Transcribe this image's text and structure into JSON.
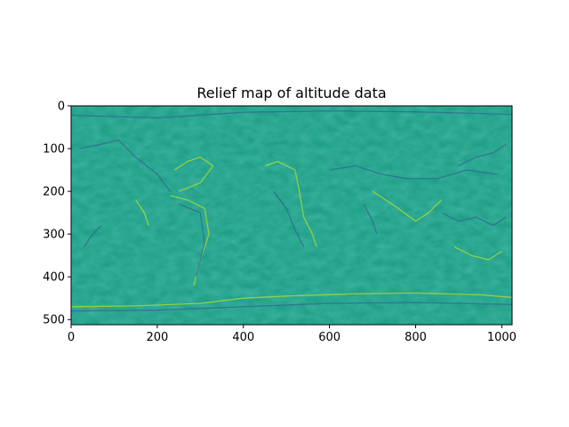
{
  "chart_data": {
    "type": "heatmap",
    "title": "Relief map of altitude data",
    "xlabel": "",
    "ylabel": "",
    "xlim": [
      0,
      1024
    ],
    "ylim": [
      512,
      0
    ],
    "x_ticks": [
      0,
      200,
      400,
      600,
      800,
      1000
    ],
    "y_ticks": [
      0,
      100,
      200,
      300,
      400,
      500
    ],
    "colormap": "viridis",
    "background_color": "#21a089",
    "highlight_color": "#b5de2b",
    "shadow_color": "#31688e",
    "grid": false
  }
}
